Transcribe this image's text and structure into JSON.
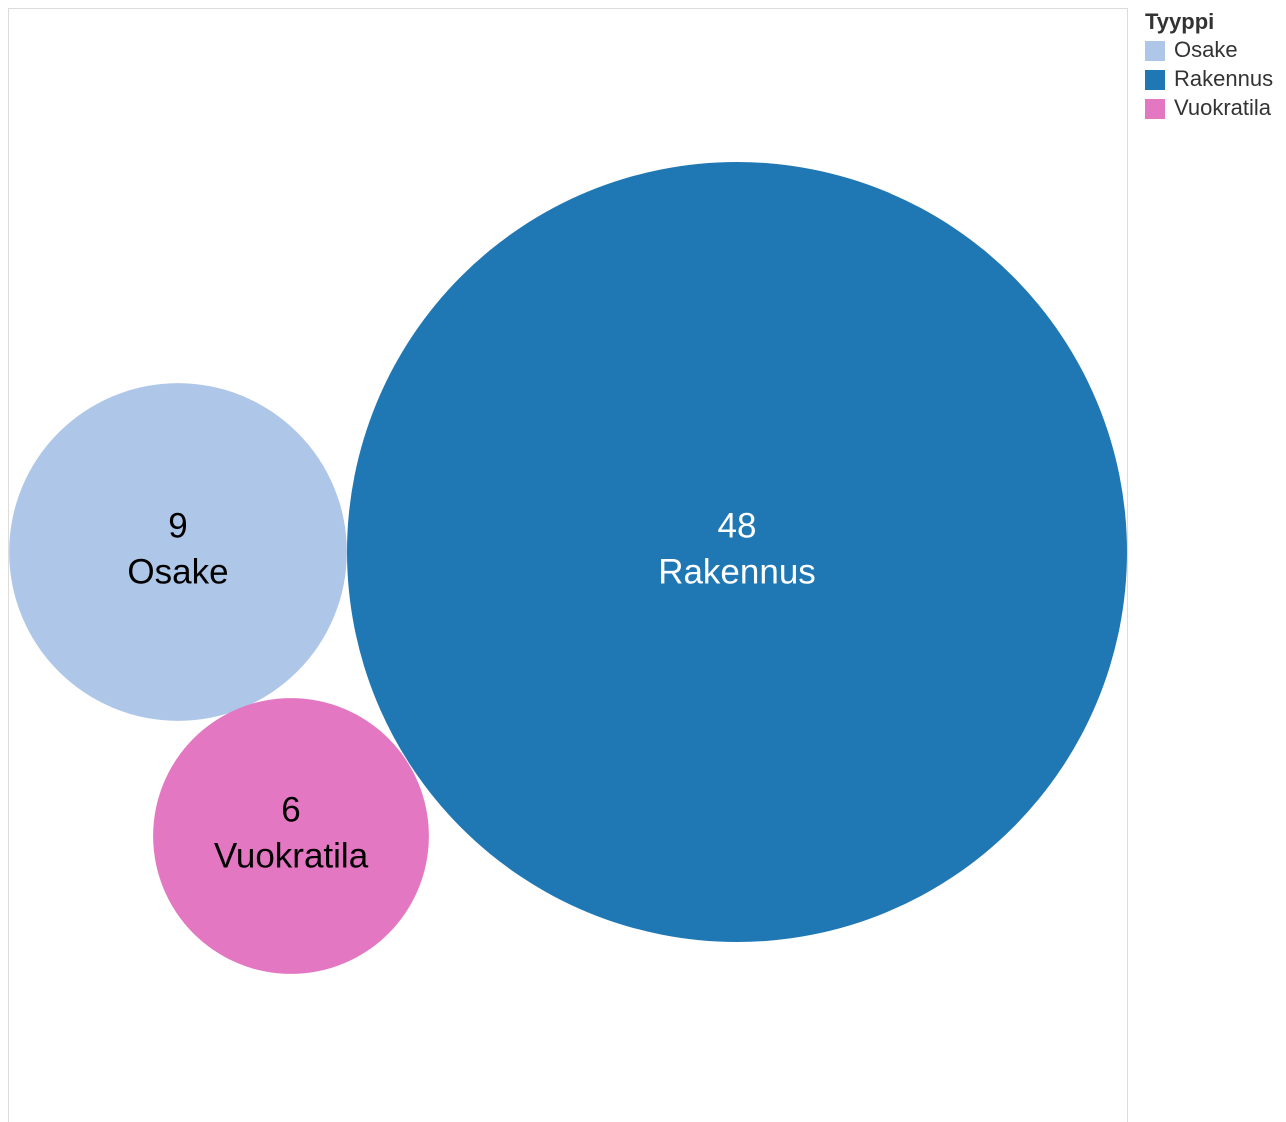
{
  "chart_data": {
    "type": "bubble",
    "legend_title": "Tyyppi",
    "categories": [
      "Osake",
      "Rakennus",
      "Vuokratila"
    ],
    "values": [
      9,
      48,
      6
    ],
    "colors": [
      "#aec7e8",
      "#1f77b4",
      "#e377c2"
    ],
    "legend": "right"
  }
}
